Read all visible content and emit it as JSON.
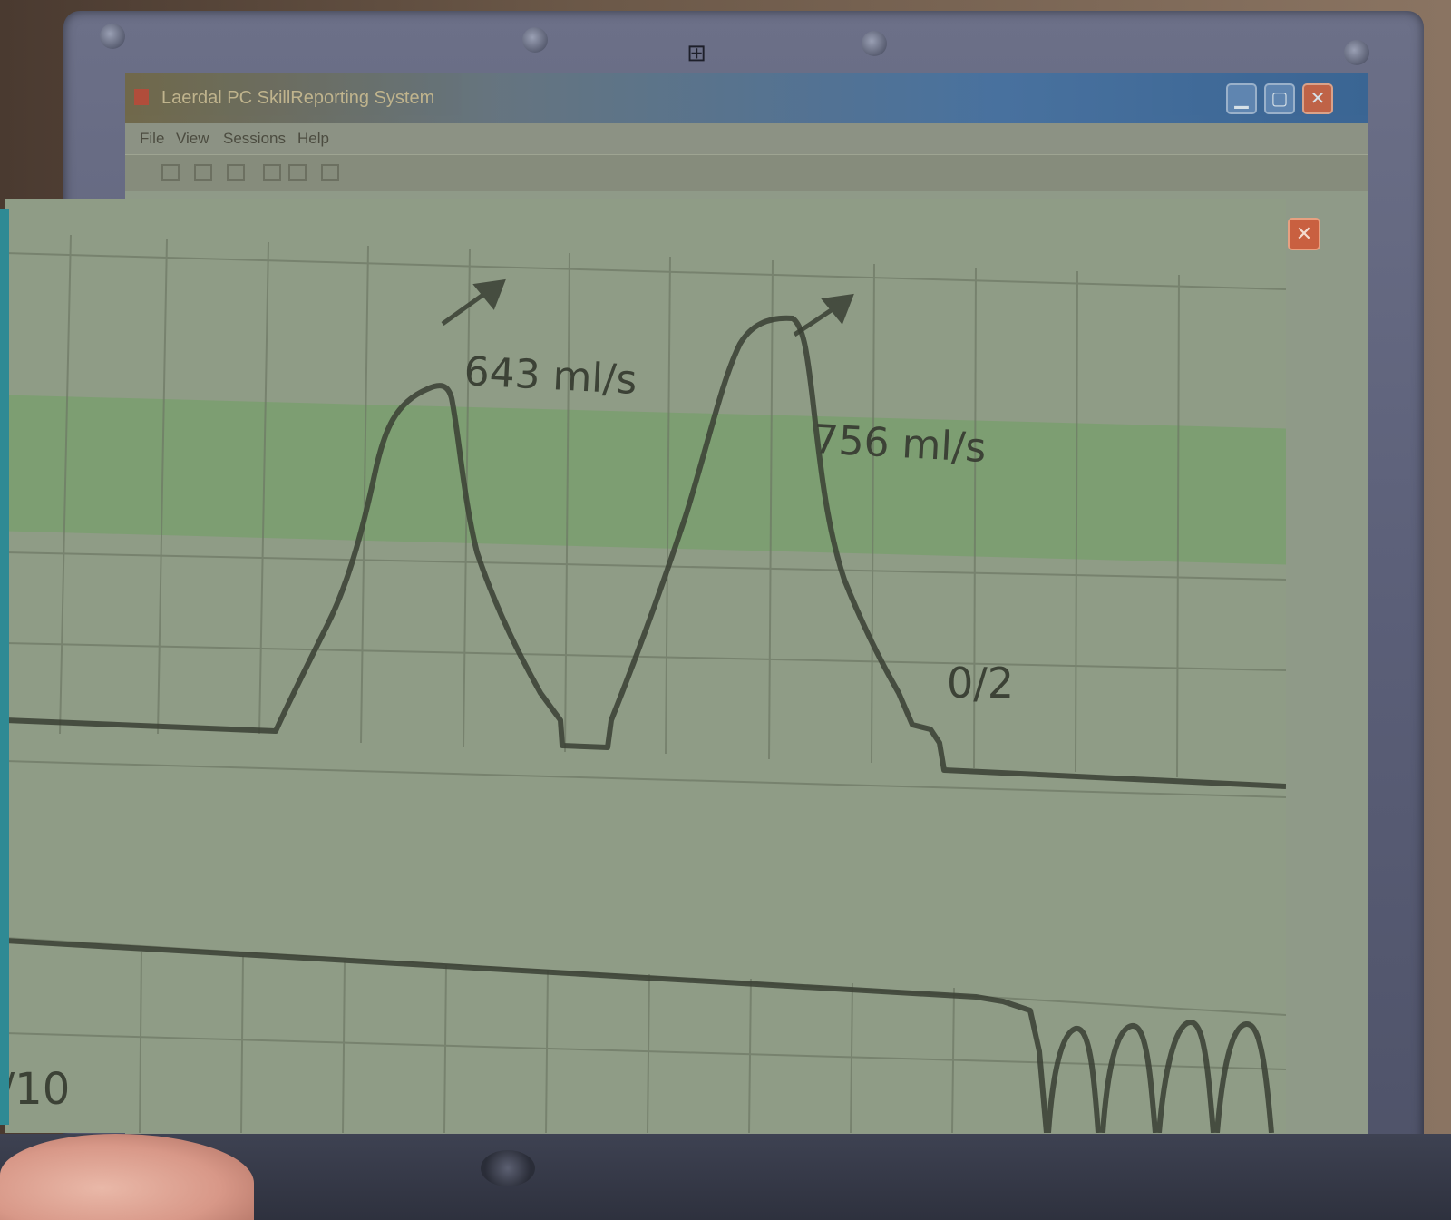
{
  "window": {
    "title": "Laerdal PC SkillReporting System",
    "close_glyph": "✕",
    "minimize_glyph": "",
    "maximize_glyph": ""
  },
  "menu": {
    "items": [
      "File",
      "View",
      "Sessions",
      "Help"
    ]
  },
  "toolbar": {
    "icons": [
      "open-icon",
      "save-icon",
      "print-icon",
      "report-icon",
      "settings-icon",
      "help-icon"
    ]
  },
  "logo": {
    "glyph": "⊞"
  },
  "chart": {
    "peak_1_label": "643 ml/s",
    "peak_2_label": "756 ml/s",
    "ratio_label": "0/2",
    "lower_trace_label": "/10"
  },
  "colors": {
    "screen_background": "#8f9c86",
    "trace": "#3a4034",
    "green_band": "#6fa062",
    "titlebar_blue": "#3c6aa2",
    "close_red": "#c85a3c"
  }
}
